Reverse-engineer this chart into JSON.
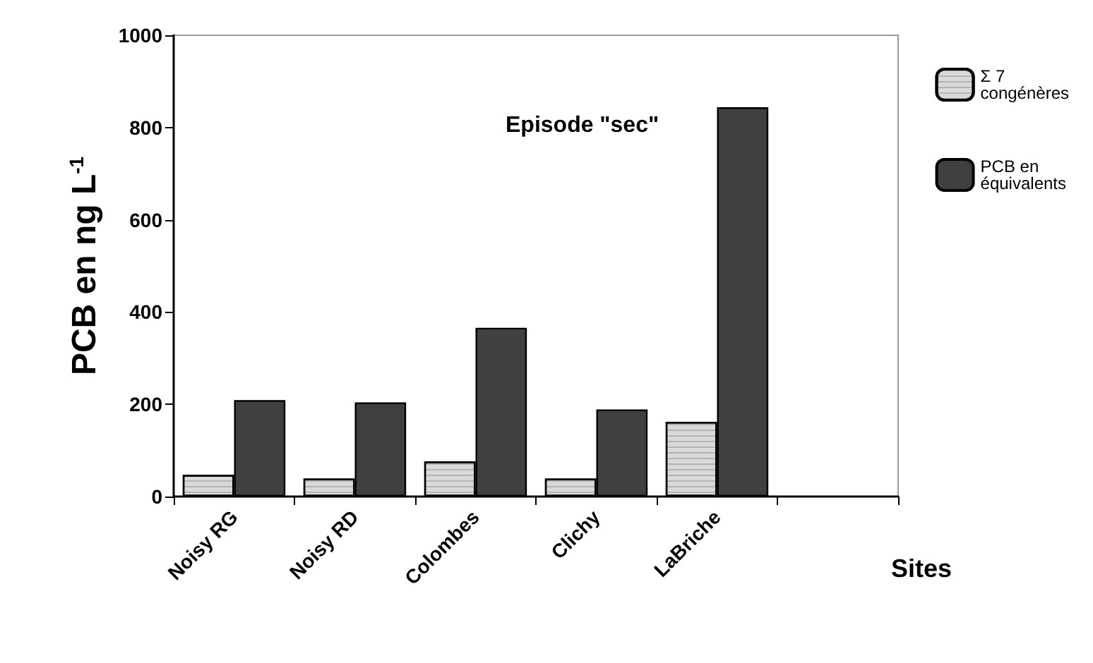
{
  "chart_data": {
    "type": "bar",
    "title": "Episode \"sec\"",
    "xlabel": "Sites",
    "ylabel": "PCB en ng L$^{-1}$",
    "categories": [
      "Noisy RG",
      "Noisy RD",
      "Colombes",
      "Clichy",
      "LaBriche",
      null
    ],
    "series": [
      {
        "name": "Σ 7 congénères",
        "color": "#d9d9d9",
        "values": [
          47,
          39,
          76,
          39,
          162,
          null
        ]
      },
      {
        "name": "PCB en équivalents",
        "color": "#404040",
        "values": [
          209,
          204,
          366,
          189,
          844,
          null
        ]
      }
    ],
    "ylim": [
      0,
      1000
    ],
    "yticks": [
      0,
      200,
      400,
      600,
      800,
      1000
    ],
    "grid": false,
    "legend": "top right"
  }
}
